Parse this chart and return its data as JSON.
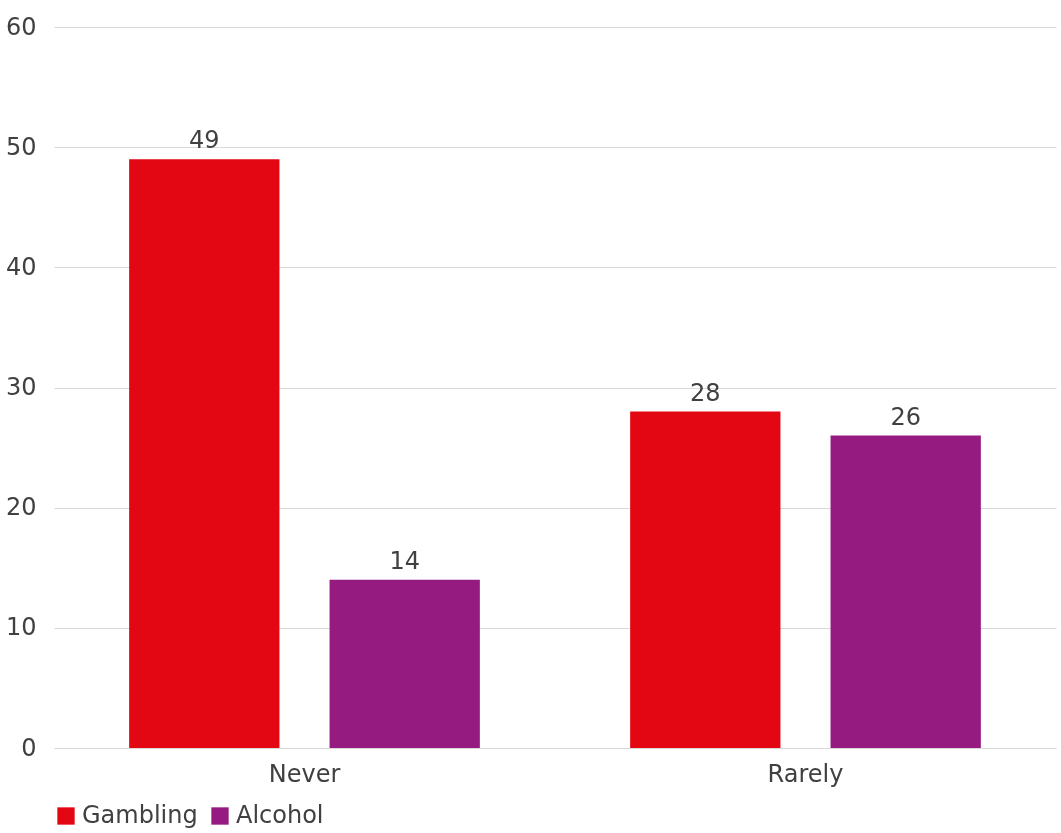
{
  "chart_data": {
    "type": "bar",
    "categories": [
      "Never",
      "Rarely"
    ],
    "series": [
      {
        "name": "Gambling",
        "color": "#e30613",
        "values": [
          49,
          28
        ]
      },
      {
        "name": "Alcohol",
        "color": "#951b81",
        "values": [
          14,
          26
        ]
      }
    ],
    "ylim": [
      0,
      60
    ],
    "yticks": [
      0,
      10,
      20,
      30,
      40,
      50,
      60
    ],
    "grid": "y",
    "legend": "bottom",
    "data_labels": true
  }
}
